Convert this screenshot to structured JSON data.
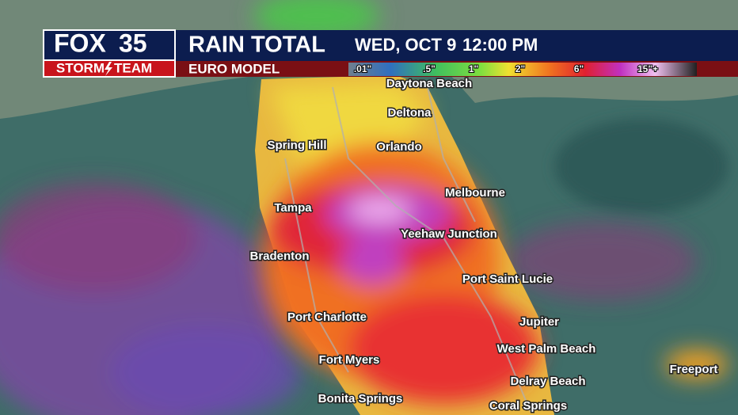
{
  "header": {
    "logo_fox": "FOX",
    "logo_number": "35",
    "team_left": "STORM",
    "team_right": "TEAM",
    "title": "RAIN TOTAL",
    "date": "WED, OCT 9",
    "time": "12:00 PM",
    "model": "EURO MODEL"
  },
  "legend": {
    "labels": [
      ".01\"",
      ".5\"",
      "1\"",
      "2\"",
      "6\"",
      "15\"+"
    ]
  },
  "cities": [
    "Daytona Beach",
    "Deltona",
    "Spring Hill",
    "Orlando",
    "Melbourne",
    "Tampa",
    "Yeehaw Junction",
    "Bradenton",
    "Port Saint Lucie",
    "Port Charlotte",
    "Jupiter",
    "West Palm Beach",
    "Fort Myers",
    "Freeport",
    "Delray Beach",
    "Bonita Springs",
    "Coral Springs"
  ]
}
